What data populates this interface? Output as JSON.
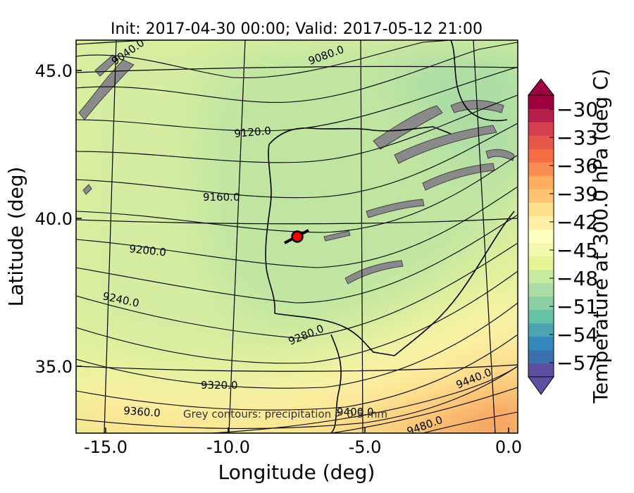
{
  "chart_data": {
    "type": "heatmap",
    "title": "Init: 2017-04-30 00:00; Valid: 2017-05-12 21:00",
    "xlabel": "Longitude (deg)",
    "ylabel": "Latitude (deg)",
    "xlim": [
      -16.0,
      0.3
    ],
    "ylim": [
      32.7,
      46.0
    ],
    "x_ticks": [
      {
        "value": -15.0,
        "label": "-15.0"
      },
      {
        "value": -10.0,
        "label": "-10.0"
      },
      {
        "value": -5.0,
        "label": "-5.0"
      },
      {
        "value": 0.0,
        "label": "0.0"
      }
    ],
    "y_ticks": [
      {
        "value": 45.0,
        "label": "45.0"
      },
      {
        "value": 40.0,
        "label": "40.0"
      },
      {
        "value": 35.0,
        "label": "35.0"
      }
    ],
    "colorbar": {
      "label": "Temperature at 300.0 hPa (deg C)",
      "min": -58.5,
      "max": -28.5,
      "ticks": [
        {
          "value": -30,
          "label": "−30"
        },
        {
          "value": -33,
          "label": "−33"
        },
        {
          "value": -36,
          "label": "−36"
        },
        {
          "value": -39,
          "label": "−39"
        },
        {
          "value": -42,
          "label": "−42"
        },
        {
          "value": -45,
          "label": "−45"
        },
        {
          "value": -48,
          "label": "−48"
        },
        {
          "value": -51,
          "label": "−51"
        },
        {
          "value": -54,
          "label": "−54"
        },
        {
          "value": -57,
          "label": "−57"
        }
      ],
      "colors": [
        "#5e4fa2",
        "#3e6fb0",
        "#3288bd",
        "#4ca3b1",
        "#66c2a5",
        "#8cd1a4",
        "#abdda4",
        "#c8e9a0",
        "#e6f598",
        "#f3faad",
        "#ffffbf",
        "#fff0a6",
        "#fee08b",
        "#fdc373",
        "#fdae61",
        "#f88d52",
        "#f46d43",
        "#e55749",
        "#d53e4f",
        "#b5204a",
        "#9e0142"
      ]
    },
    "height_contour_labels": [
      {
        "label": "9040.0",
        "lon": -14.6,
        "lat": 45.5
      },
      {
        "label": "9080.0",
        "lon": -6.0,
        "lat": 45.6
      },
      {
        "label": "9120.0",
        "lon": -9.3,
        "lat": 42.8
      },
      {
        "label": "9160.0",
        "lon": -10.5,
        "lat": 40.7
      },
      {
        "label": "9200.0",
        "lon": -12.4,
        "lat": 39.2
      },
      {
        "label": "9240.0",
        "lon": -14.1,
        "lat": 37.7
      },
      {
        "label": "9280.0",
        "lon": -6.4,
        "lat": 36.0
      },
      {
        "label": "9320.0",
        "lon": -9.9,
        "lat": 34.0
      },
      {
        "label": "9360.0",
        "lon": -13.6,
        "lat": 33.2
      },
      {
        "label": "9400.0",
        "lon": -6.6,
        "lat": 33.2
      },
      {
        "label": "9440.0",
        "lon": -1.5,
        "lat": 34.4
      },
      {
        "label": "9480.0",
        "lon": -3.6,
        "lat": 32.9
      }
    ],
    "annotation": "Grey contours: precipitation > 0.5 mm",
    "marker": {
      "lon": -7.8,
      "lat": 39.3,
      "color": "#ff0000"
    }
  }
}
